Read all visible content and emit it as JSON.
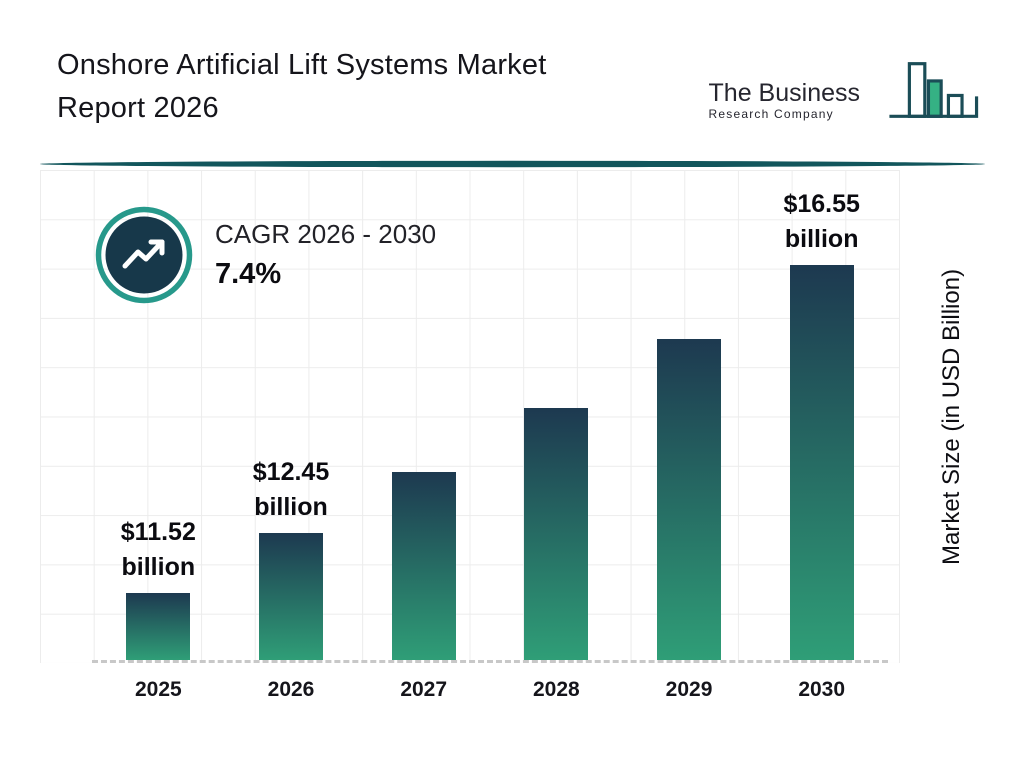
{
  "colors": {
    "text_dark": "#15151b",
    "accent_teal": "#12565c",
    "ring_teal": "#27998b",
    "icon_circle": "#17384a",
    "bar_top": "#1d3950",
    "bar_bottom": "#2f9e77",
    "logo_green": "#35b184",
    "logo_outline": "#1b4d57",
    "grid": "#ececec"
  },
  "header": {
    "title_line1": "Onshore Artificial Lift Systems Market",
    "title_line2": "Report 2026",
    "logo": {
      "name": "The Business",
      "subname": "Research Company"
    }
  },
  "cagr": {
    "label": "CAGR 2026 - 2030",
    "value": "7.4%"
  },
  "chart_data": {
    "type": "bar",
    "categories": [
      "2025",
      "2026",
      "2027",
      "2028",
      "2029",
      "2030"
    ],
    "values": [
      11.52,
      12.45,
      13.37,
      14.36,
      15.42,
      16.55
    ],
    "value_labels": [
      [
        "$11.52",
        "billion"
      ],
      [
        "$12.45",
        "billion"
      ],
      null,
      null,
      null,
      [
        "$16.55",
        "billion"
      ]
    ],
    "xlabel": "",
    "ylabel": "Market Size (in USD Billion)",
    "ylim": [
      10.5,
      18
    ],
    "grid": true,
    "legend": false,
    "baseline_style": "dashed"
  }
}
